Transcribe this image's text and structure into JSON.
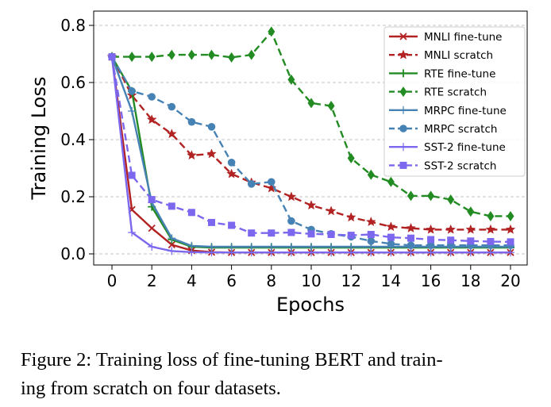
{
  "caption": {
    "line1": "Figure 2: Training loss of fine-tuning BERT and train-",
    "line2": "ing from scratch on four datasets."
  },
  "chart_data": {
    "type": "line",
    "xlabel": "Epochs",
    "ylabel": "Training Loss",
    "xlim": [
      0,
      20
    ],
    "ylim": [
      0,
      0.8
    ],
    "xticks": [
      0,
      2,
      4,
      6,
      8,
      10,
      12,
      14,
      16,
      18,
      20
    ],
    "yticks": [
      0.0,
      0.2,
      0.4,
      0.6,
      0.8
    ],
    "xtick_labels": [
      "0",
      "2",
      "4",
      "6",
      "8",
      "10",
      "12",
      "14",
      "16",
      "18",
      "20"
    ],
    "ytick_labels": [
      "0.0",
      "0.2",
      "0.4",
      "0.6",
      "0.8"
    ],
    "grid": "horizontal dashed",
    "legend_position": "top-right",
    "x": [
      0,
      1,
      2,
      3,
      4,
      5,
      6,
      7,
      8,
      9,
      10,
      11,
      12,
      13,
      14,
      15,
      16,
      17,
      18,
      19,
      20
    ],
    "series": [
      {
        "name": "MNLI fine-tune",
        "color": "#b22222",
        "dashed": false,
        "marker": "x",
        "values": [
          0.69,
          0.155,
          0.09,
          0.032,
          0.012,
          0.006,
          0.005,
          0.005,
          0.005,
          0.005,
          0.005,
          0.005,
          0.005,
          0.005,
          0.005,
          0.005,
          0.005,
          0.005,
          0.005,
          0.005,
          0.005
        ]
      },
      {
        "name": "MNLI scratch",
        "color": "#b22222",
        "dashed": true,
        "marker": "star",
        "values": [
          0.69,
          0.555,
          0.47,
          0.42,
          0.345,
          0.35,
          0.28,
          0.25,
          0.23,
          0.2,
          0.17,
          0.15,
          0.128,
          0.112,
          0.095,
          0.09,
          0.085,
          0.085,
          0.085,
          0.085,
          0.085
        ]
      },
      {
        "name": "RTE fine-tune",
        "color": "#228b22",
        "dashed": false,
        "marker": "plus",
        "values": [
          0.69,
          0.57,
          0.165,
          0.05,
          0.025,
          0.022,
          0.022,
          0.022,
          0.022,
          0.022,
          0.022,
          0.022,
          0.022,
          0.022,
          0.022,
          0.022,
          0.022,
          0.022,
          0.022,
          0.022,
          0.022
        ]
      },
      {
        "name": "RTE scratch",
        "color": "#228b22",
        "dashed": true,
        "marker": "diamond",
        "values": [
          0.69,
          0.69,
          0.69,
          0.697,
          0.697,
          0.697,
          0.688,
          0.697,
          0.778,
          0.61,
          0.528,
          0.518,
          0.335,
          0.277,
          0.252,
          0.203,
          0.203,
          0.19,
          0.148,
          0.132,
          0.132
        ]
      },
      {
        "name": "MRPC fine-tune",
        "color": "#4682b4",
        "dashed": false,
        "marker": "thinplus",
        "values": [
          0.69,
          0.5,
          0.18,
          0.055,
          0.028,
          0.025,
          0.025,
          0.025,
          0.025,
          0.025,
          0.025,
          0.025,
          0.025,
          0.025,
          0.025,
          0.025,
          0.025,
          0.025,
          0.025,
          0.025,
          0.025
        ]
      },
      {
        "name": "MRPC scratch",
        "color": "#4682b4",
        "dashed": true,
        "marker": "circle",
        "values": [
          0.69,
          0.57,
          0.55,
          0.515,
          0.462,
          0.445,
          0.32,
          0.245,
          0.252,
          0.115,
          0.085,
          0.07,
          0.06,
          0.045,
          0.035,
          0.03,
          0.03,
          0.03,
          0.03,
          0.03,
          0.03
        ]
      },
      {
        "name": "SST-2 fine-tune",
        "color": "#7b68ee",
        "dashed": false,
        "marker": "thinplus",
        "values": [
          0.69,
          0.075,
          0.025,
          0.01,
          0.006,
          0.005,
          0.005,
          0.005,
          0.005,
          0.005,
          0.005,
          0.005,
          0.005,
          0.005,
          0.005,
          0.005,
          0.005,
          0.005,
          0.005,
          0.005,
          0.005
        ]
      },
      {
        "name": "SST-2 scratch",
        "color": "#7b68ee",
        "dashed": true,
        "marker": "square",
        "values": [
          0.69,
          0.275,
          0.19,
          0.167,
          0.145,
          0.11,
          0.1,
          0.073,
          0.073,
          0.075,
          0.07,
          0.068,
          0.065,
          0.068,
          0.058,
          0.055,
          0.05,
          0.048,
          0.045,
          0.043,
          0.042
        ]
      }
    ]
  }
}
